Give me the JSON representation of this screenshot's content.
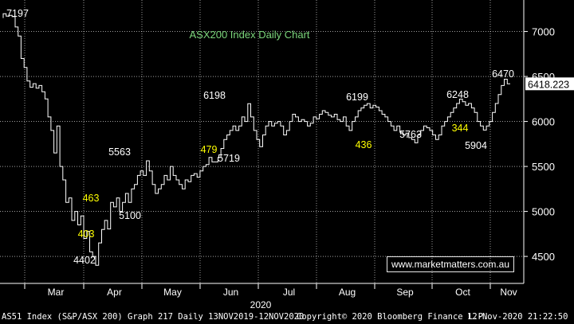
{
  "chart_data": {
    "type": "line",
    "title": "ASX200 Index Daily Chart",
    "ylim": [
      4200,
      7350
    ],
    "y_ticks": [
      "4500",
      "5000",
      "5500",
      "6000",
      "6500",
      "7000"
    ],
    "x_ticks": [
      "Mar",
      "Apr",
      "May",
      "Jun",
      "Jul",
      "Aug",
      "Sep",
      "Oct",
      "Nov"
    ],
    "x_year_label": "2020",
    "last_value": "6418.223",
    "annotations": {
      "level_labels": [
        "7197",
        "6198",
        "6199",
        "6248",
        "6470",
        "5563",
        "5100",
        "5719",
        "5763",
        "5904",
        "4402"
      ],
      "move_labels": [
        "403",
        "463",
        "479",
        "436",
        "344"
      ]
    },
    "series": [
      {
        "values": [
          7150,
          7197,
          7170,
          7180,
          7165,
          7050,
          6950,
          6700,
          6600,
          6450,
          6380,
          6420,
          6370,
          6400,
          6330,
          6250,
          6050,
          5900,
          5650,
          5950,
          5500,
          5350,
          5100,
          5150,
          4900,
          5000,
          4850,
          4950,
          4700,
          4780,
          4550,
          4500,
          4402,
          4650,
          4800,
          4900,
          4805,
          5100,
          5050,
          5150,
          5000,
          5100,
          5200,
          5100,
          5250,
          5300,
          5400,
          5450,
          5400,
          5563,
          5450,
          5300,
          5200,
          5250,
          5300,
          5400,
          5350,
          5500,
          5400,
          5350,
          5300,
          5250,
          5350,
          5330,
          5400,
          5420,
          5380,
          5450,
          5500,
          5520,
          5600,
          5550,
          5550,
          5600,
          5700,
          5800,
          5850,
          5900,
          5950,
          5900,
          5950,
          6050,
          6000,
          6198,
          6050,
          5900,
          5800,
          5719,
          5850,
          5950,
          6000,
          5950,
          5980,
          6000,
          5950,
          5850,
          5900,
          6000,
          6080,
          6050,
          6000,
          6020,
          6000,
          5950,
          5980,
          6050,
          6030,
          6080,
          6120,
          6100,
          6070,
          6050,
          6080,
          6020,
          6000,
          6050,
          5950,
          5900,
          6000,
          6050,
          6120,
          6150,
          6180,
          6199,
          6150,
          6180,
          6160,
          6120,
          6080,
          6050,
          6000,
          5950,
          5900,
          5950,
          5880,
          5850,
          5870,
          5820,
          5800,
          5763,
          5850,
          5900,
          5950,
          5930,
          5900,
          5850,
          5800,
          5850,
          5950,
          6000,
          6050,
          6100,
          6150,
          6200,
          6248,
          6220,
          6180,
          6200,
          6150,
          6100,
          6000,
          5950,
          5904,
          5950,
          6000,
          6100,
          6200,
          6300,
          6400,
          6470,
          6418.223
        ]
      }
    ]
  },
  "footer": {
    "left": "AS51 Index (S&P/ASX 200) Graph 217  Daily 13NOV2019-12NOV2020",
    "middle": "Copyright© 2020 Bloomberg Finance L.P.",
    "right": "12-Nov-2020 21:22:50"
  },
  "watermark": "www.marketmatters.com.au",
  "colors": {
    "background": "#000000",
    "series": "#ffffff",
    "grid": "#ffffff",
    "title": "#7cd67c",
    "move_label": "#ffff00",
    "level_label": "#ffffff"
  }
}
